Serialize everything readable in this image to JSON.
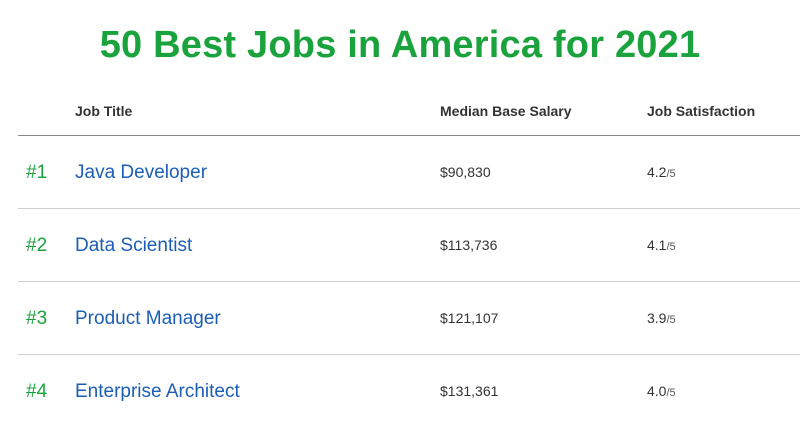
{
  "page": {
    "title": "50 Best Jobs in America for 2021"
  },
  "table": {
    "headers": {
      "rank": "",
      "job_title": "Job Title",
      "salary": "Median Base Salary",
      "satisfaction": "Job Satisfaction"
    },
    "rows": [
      {
        "rank": "#1",
        "title": "Java Developer",
        "salary": "$90,830",
        "satisfaction": "4.2",
        "satisfaction_max": "/5"
      },
      {
        "rank": "#2",
        "title": "Data Scientist",
        "salary": "$113,736",
        "satisfaction": "4.1",
        "satisfaction_max": "/5"
      },
      {
        "rank": "#3",
        "title": "Product Manager",
        "salary": "$121,107",
        "satisfaction": "3.9",
        "satisfaction_max": "/5"
      },
      {
        "rank": "#4",
        "title": "Enterprise Architect",
        "salary": "$131,361",
        "satisfaction": "4.0",
        "satisfaction_max": "/5"
      }
    ]
  },
  "colors": {
    "accent_green": "#1aa33c",
    "link_blue": "#1b5eb5"
  }
}
